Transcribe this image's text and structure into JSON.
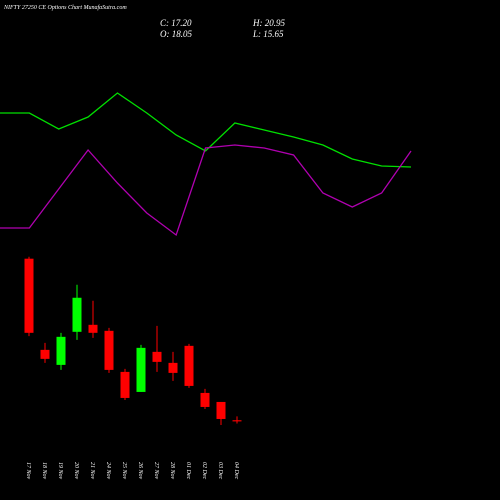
{
  "chart_data": [
    {
      "type": "candlestick",
      "title": "NIFTY 27250 CE Options Chart MunafaSutra.com",
      "annotations": [
        "C: 17.20",
        "H: 20.95",
        "O: 18.05",
        "L: 15.65"
      ],
      "categories": [
        "17 Nov",
        "18 Nov",
        "19 Nov",
        "20 Nov",
        "21 Nov",
        "24 Nov",
        "25 Nov",
        "26 Nov",
        "27 Nov",
        "28 Nov",
        "01 Dec",
        "02 Dec",
        "03 Dec",
        "04 Dec"
      ],
      "open": [
        139,
        70.75,
        59.5,
        84.25,
        89.5,
        85,
        54.25,
        39.25,
        69.25,
        61,
        73.75,
        38.5,
        31.75,
        18.05
      ],
      "high": [
        140.5,
        76,
        83.5,
        119.5,
        107.5,
        87.25,
        56.5,
        74.5,
        88.75,
        69.25,
        75.25,
        41.5,
        31.75,
        20.95
      ],
      "low": [
        81,
        61,
        55.75,
        78.25,
        79.75,
        53.5,
        33.25,
        39.25,
        54.25,
        47.5,
        42.25,
        26.5,
        14.5,
        15.65
      ],
      "close": [
        83.5,
        64,
        80.5,
        109.75,
        83.5,
        55.75,
        34.75,
        72.25,
        61.75,
        53.5,
        43.75,
        28,
        19,
        17.2
      ],
      "up_color": "#00ff00",
      "down_color": "#ff0000",
      "ylim": [
        10,
        150
      ]
    },
    {
      "type": "line",
      "categories": [
        null,
        null,
        null,
        null,
        null,
        null,
        null,
        null,
        null,
        null,
        null,
        null,
        null,
        null,
        null
      ],
      "series": [
        {
          "color": "#00e000",
          "values": [
            137,
            137,
            121,
            133,
            157,
            137,
            115,
            99,
            127,
            120,
            113,
            105,
            91,
            84,
            83
          ]
        },
        {
          "color": "#b000b0",
          "values": [
            22,
            22,
            61,
            100,
            67,
            37,
            15,
            102,
            105,
            102,
            95,
            57,
            43,
            57,
            99
          ]
        }
      ],
      "ylim": [
        0,
        250
      ]
    }
  ]
}
